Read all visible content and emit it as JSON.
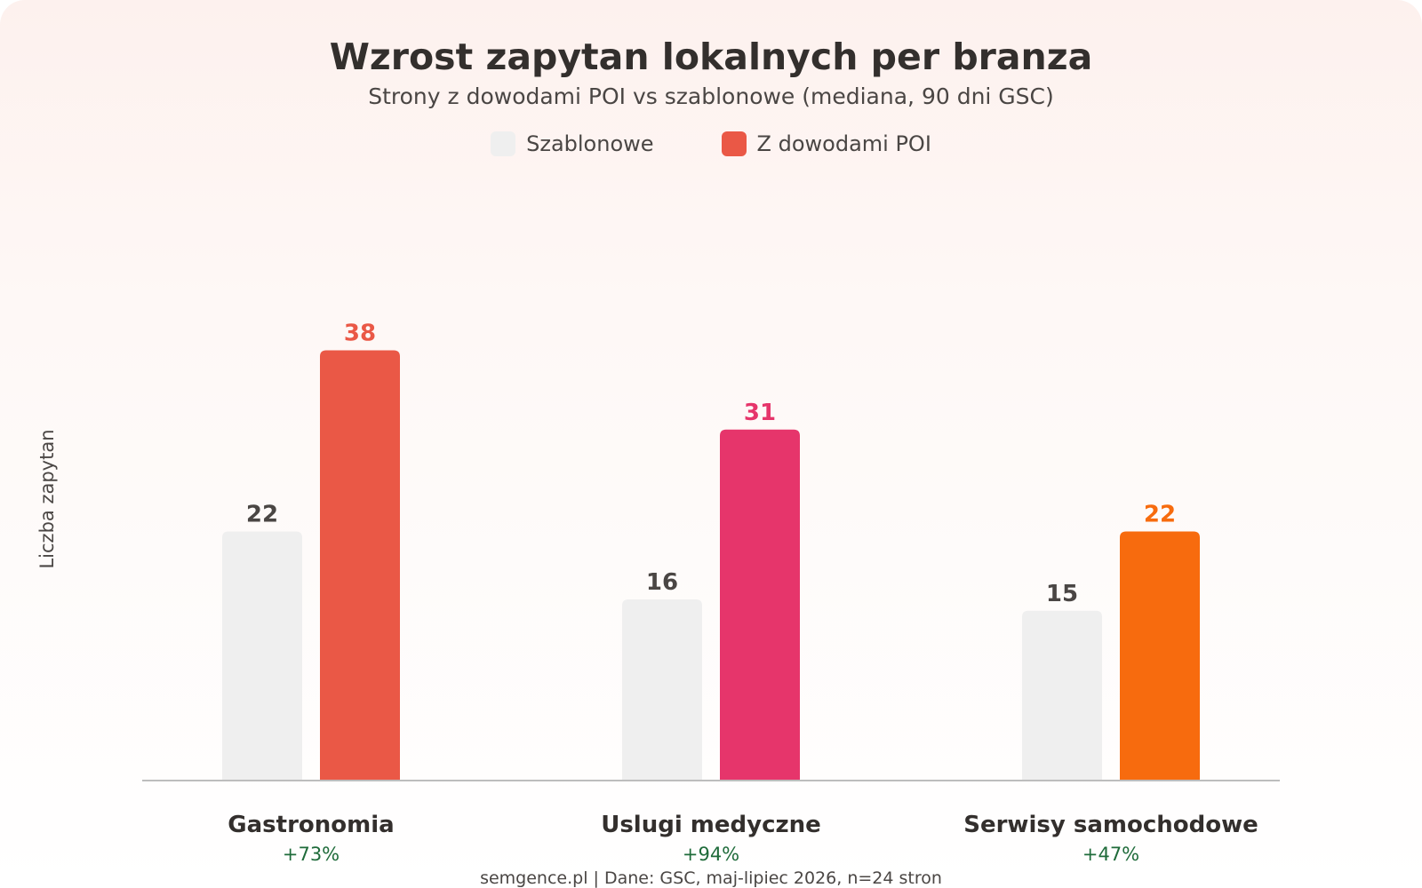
{
  "chart_data": {
    "type": "bar",
    "title": "Wzrost zapytan lokalnych per branza",
    "subtitle": "Strony z dowodami POI vs szablonowe (mediana, 90 dni GSC)",
    "ylabel": "Liczba zapytan",
    "xlabel": "",
    "ylim": [
      0,
      48
    ],
    "grid": false,
    "legend_position": "top-center",
    "categories": [
      "Gastronomia",
      "Uslugi medyczne",
      "Serwisy samochodowe"
    ],
    "category_growth": [
      "+73%",
      "+94%",
      "+47%"
    ],
    "series": [
      {
        "name": "Szablonowe",
        "values": [
          22,
          16,
          15
        ],
        "color": "#efefef",
        "label_colors": [
          "#4a4644",
          "#4a4644",
          "#4a4644"
        ]
      },
      {
        "name": "Z dowodami POI",
        "values": [
          38,
          31,
          22
        ],
        "color": "#ea5846",
        "bar_colors": [
          "#ea5846",
          "#e6356b",
          "#f76b0e"
        ],
        "label_colors": [
          "#ea5846",
          "#e6356b",
          "#f76b0e"
        ]
      }
    ],
    "footer": "semgence.pl | Dane: GSC, maj-lipiec 2026, n=24 stron"
  }
}
